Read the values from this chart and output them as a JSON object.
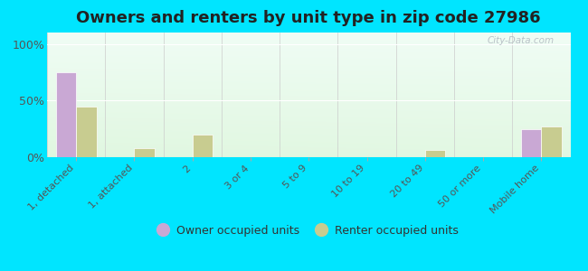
{
  "title": "Owners and renters by unit type in zip code 27986",
  "categories": [
    "1, detached",
    "1, attached",
    "2",
    "3 or 4",
    "5 to 9",
    "10 to 19",
    "20 to 49",
    "50 or more",
    "Mobile home"
  ],
  "owner_values": [
    75,
    0,
    0,
    0,
    0,
    0,
    0,
    0,
    25
  ],
  "renter_values": [
    45,
    8,
    20,
    0,
    0,
    0,
    6,
    0,
    27
  ],
  "owner_color": "#c9a8d4",
  "renter_color": "#c8cc90",
  "outer_background": "#00e5ff",
  "yticks": [
    0,
    50,
    100
  ],
  "ylim": [
    0,
    110
  ],
  "bar_width": 0.35,
  "title_fontsize": 13,
  "legend_owner": "Owner occupied units",
  "legend_renter": "Renter occupied units",
  "bg_top_color": "#e8f5e0",
  "bg_bottom_color": "#f5fef0",
  "bg_right_color": "#dff0f8"
}
